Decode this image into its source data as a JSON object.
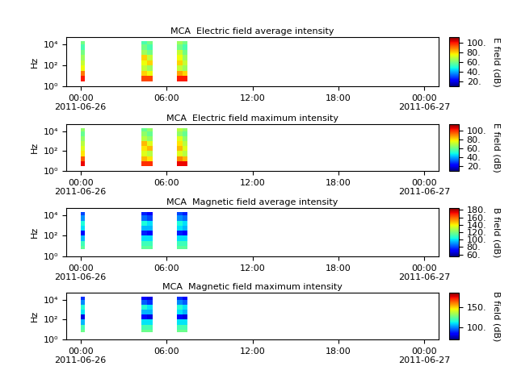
{
  "chart_data": [
    {
      "type": "heatmap",
      "title": "MCA  Electric field average intensity",
      "ylabel": "Hz",
      "x_edges": [
        0,
        0.3,
        4.25,
        4.65,
        5.05,
        6.75,
        7.1,
        7.45
      ],
      "y_edges": [
        3,
        10,
        30,
        100,
        300,
        1000,
        3000,
        10000,
        20000
      ],
      "cells": [
        [
          100,
          null,
          95,
          95,
          null,
          100,
          100
        ],
        [
          90,
          null,
          80,
          75,
          null,
          85,
          80
        ],
        [
          75,
          null,
          70,
          65,
          null,
          70,
          65
        ],
        [
          70,
          null,
          75,
          80,
          null,
          80,
          70
        ],
        [
          65,
          null,
          80,
          70,
          null,
          75,
          65
        ],
        [
          60,
          null,
          65,
          60,
          null,
          70,
          60
        ],
        [
          55,
          null,
          60,
          55,
          null,
          60,
          55
        ],
        [
          60,
          null,
          55,
          60,
          null,
          65,
          60
        ]
      ],
      "xlim": [
        -1,
        25
      ],
      "xticks": [
        {
          "value": 0,
          "label": "00:00\n2011-06-26"
        },
        {
          "value": 6,
          "label": "06:00"
        },
        {
          "value": 12,
          "label": "12:00"
        },
        {
          "value": 18,
          "label": "18:00"
        },
        {
          "value": 24,
          "label": "00:00\n2011-06-27"
        }
      ],
      "ylim": [
        1,
        50000
      ],
      "yticks": [
        {
          "value": 1,
          "label": "10⁰"
        },
        {
          "value": 100,
          "label": "10²"
        },
        {
          "value": 10000,
          "label": "10⁴"
        }
      ],
      "log": "y",
      "colorbar_label": "E field (dB)",
      "colorbar_range": [
        10,
        112
      ],
      "colorbar_ticks": [
        {
          "value": 20,
          "label": "20."
        },
        {
          "value": 40,
          "label": "40."
        },
        {
          "value": 60,
          "label": "60."
        },
        {
          "value": 80,
          "label": "80."
        },
        {
          "value": 100,
          "label": "100."
        }
      ]
    },
    {
      "type": "heatmap",
      "title": "MCA  Electric field maximum intensity",
      "ylabel": "Hz",
      "x_edges": [
        0,
        0.3,
        4.25,
        4.65,
        5.05,
        6.75,
        7.1,
        7.45
      ],
      "y_edges": [
        3,
        10,
        30,
        100,
        300,
        1000,
        3000,
        10000,
        20000
      ],
      "cells": [
        [
          105,
          null,
          100,
          100,
          null,
          105,
          105
        ],
        [
          95,
          null,
          85,
          80,
          null,
          90,
          85
        ],
        [
          80,
          null,
          75,
          70,
          null,
          75,
          70
        ],
        [
          75,
          null,
          80,
          85,
          null,
          85,
          75
        ],
        [
          70,
          null,
          85,
          75,
          null,
          80,
          70
        ],
        [
          65,
          null,
          70,
          65,
          null,
          75,
          65
        ],
        [
          60,
          null,
          65,
          60,
          null,
          65,
          60
        ],
        [
          65,
          null,
          60,
          65,
          null,
          70,
          65
        ]
      ],
      "xlim": [
        -1,
        25
      ],
      "xticks": [
        {
          "value": 0,
          "label": "00:00\n2011-06-26"
        },
        {
          "value": 6,
          "label": "06:00"
        },
        {
          "value": 12,
          "label": "12:00"
        },
        {
          "value": 18,
          "label": "18:00"
        },
        {
          "value": 24,
          "label": "00:00\n2011-06-27"
        }
      ],
      "ylim": [
        1,
        50000
      ],
      "yticks": [
        {
          "value": 1,
          "label": "10⁰"
        },
        {
          "value": 100,
          "label": "10²"
        },
        {
          "value": 10000,
          "label": "10⁴"
        }
      ],
      "log": "y",
      "colorbar_label": "E field (dB)",
      "colorbar_range": [
        10,
        115
      ],
      "colorbar_ticks": [
        {
          "value": 20,
          "label": "20."
        },
        {
          "value": 40,
          "label": "40."
        },
        {
          "value": 60,
          "label": "60."
        },
        {
          "value": 80,
          "label": "80."
        },
        {
          "value": 100,
          "label": "100."
        }
      ]
    },
    {
      "type": "heatmap",
      "title": "MCA  Magnetic field average intensity",
      "ylabel": "Hz",
      "x_edges": [
        0,
        0.3,
        4.25,
        4.65,
        5.05,
        6.75,
        7.1,
        7.45
      ],
      "y_edges": [
        5,
        10,
        30,
        100,
        300,
        1000,
        3000,
        10000,
        20000
      ],
      "cells": [
        [
          115,
          null,
          115,
          115,
          null,
          115,
          115
        ],
        [
          110,
          null,
          110,
          110,
          null,
          110,
          110
        ],
        [
          95,
          null,
          100,
          100,
          null,
          100,
          100
        ],
        [
          70,
          null,
          75,
          70,
          null,
          75,
          70
        ],
        [
          100,
          null,
          95,
          95,
          null,
          100,
          95
        ],
        [
          105,
          null,
          105,
          100,
          null,
          105,
          100
        ],
        [
          90,
          null,
          85,
          80,
          null,
          90,
          85
        ],
        [
          80,
          null,
          75,
          70,
          null,
          80,
          75
        ]
      ],
      "xlim": [
        -1,
        25
      ],
      "xticks": [
        {
          "value": 0,
          "label": "00:00\n2011-06-26"
        },
        {
          "value": 6,
          "label": "06:00"
        },
        {
          "value": 12,
          "label": "12:00"
        },
        {
          "value": 18,
          "label": "18:00"
        },
        {
          "value": 24,
          "label": "00:00\n2011-06-27"
        }
      ],
      "ylim": [
        1,
        50000
      ],
      "yticks": [
        {
          "value": 1,
          "label": "10⁰"
        },
        {
          "value": 100,
          "label": "10²"
        },
        {
          "value": 10000,
          "label": "10⁴"
        }
      ],
      "log": "y",
      "colorbar_label": "B field (dB)",
      "colorbar_range": [
        55,
        185
      ],
      "colorbar_ticks": [
        {
          "value": 60,
          "label": "60."
        },
        {
          "value": 80,
          "label": "80."
        },
        {
          "value": 100,
          "label": "100."
        },
        {
          "value": 120,
          "label": "120."
        },
        {
          "value": 140,
          "label": "140."
        },
        {
          "value": 160,
          "label": "160."
        },
        {
          "value": 180,
          "label": "180."
        }
      ]
    },
    {
      "type": "heatmap",
      "title": "MCA  Magnetic field maximum intensity",
      "ylabel": "Hz",
      "x_edges": [
        0,
        0.3,
        4.25,
        4.65,
        5.05,
        6.75,
        7.1,
        7.45
      ],
      "y_edges": [
        5,
        10,
        30,
        100,
        300,
        1000,
        3000,
        10000,
        20000
      ],
      "cells": [
        [
          125,
          null,
          125,
          125,
          null,
          125,
          125
        ],
        [
          120,
          null,
          120,
          120,
          null,
          120,
          120
        ],
        [
          105,
          null,
          110,
          110,
          null,
          110,
          110
        ],
        [
          80,
          null,
          85,
          80,
          null,
          85,
          80
        ],
        [
          110,
          null,
          105,
          105,
          null,
          110,
          105
        ],
        [
          115,
          null,
          115,
          110,
          null,
          115,
          110
        ],
        [
          100,
          null,
          95,
          90,
          null,
          100,
          95
        ],
        [
          90,
          null,
          85,
          80,
          null,
          90,
          85
        ]
      ],
      "xlim": [
        -1,
        25
      ],
      "xticks": [
        {
          "value": 0,
          "label": "00:00\n2011-06-26"
        },
        {
          "value": 6,
          "label": "06:00"
        },
        {
          "value": 12,
          "label": "12:00"
        },
        {
          "value": 18,
          "label": "18:00"
        },
        {
          "value": 24,
          "label": "00:00\n2011-06-27"
        }
      ],
      "ylim": [
        1,
        50000
      ],
      "yticks": [
        {
          "value": 1,
          "label": "10⁰"
        },
        {
          "value": 100,
          "label": "10²"
        },
        {
          "value": 10000,
          "label": "10⁴"
        }
      ],
      "log": "y",
      "colorbar_label": "B field (dB)",
      "colorbar_range": [
        70,
        185
      ],
      "colorbar_ticks": [
        {
          "value": 100,
          "label": "100."
        },
        {
          "value": 150,
          "label": "150."
        }
      ]
    }
  ]
}
